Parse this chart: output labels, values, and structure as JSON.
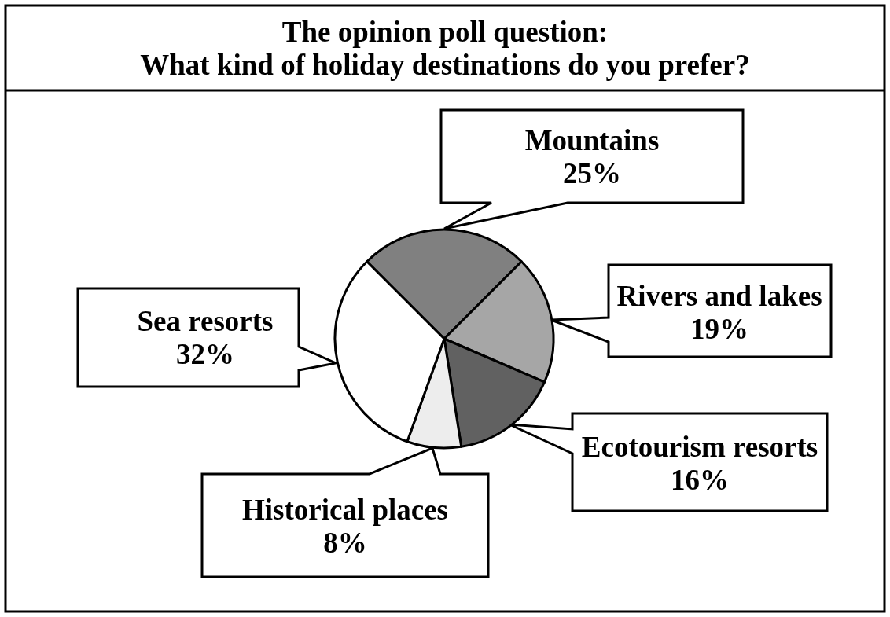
{
  "chart_data": {
    "type": "pie",
    "title": "The opinion poll question:\nWhat kind of holiday destinations do you prefer?",
    "categories": [
      "Mountains",
      "Rivers and lakes",
      "Ecotourism resorts",
      "Historical places",
      "Sea resorts"
    ],
    "values": [
      25,
      19,
      16,
      8,
      32
    ],
    "value_labels": [
      "25%",
      "19%",
      "16%",
      "8%",
      "32%"
    ],
    "colors": [
      "#808080",
      "#a6a6a6",
      "#616161",
      "#ededed",
      "#ffffff"
    ]
  }
}
